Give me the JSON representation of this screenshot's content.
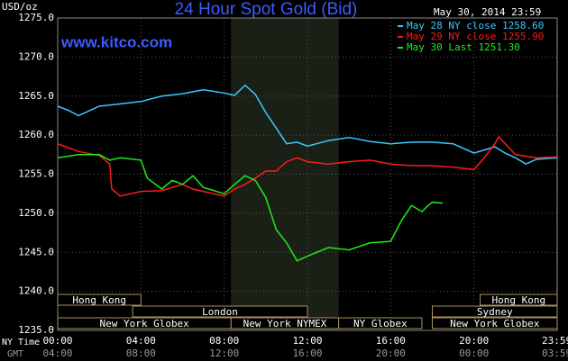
{
  "chart_data": {
    "type": "line",
    "title": "24 Hour Spot Gold (Bid)",
    "date": "May 30, 2014 23:59",
    "site": "www.kitco.com",
    "ylabel": "USD/oz",
    "x_row_label": "NY Time",
    "x2_row_label": "GMT",
    "xlim": [
      0,
      24
    ],
    "ylim": [
      1235,
      1275
    ],
    "xticks": [
      {
        "value": 0,
        "label": "00:00"
      },
      {
        "value": 4,
        "label": "04:00"
      },
      {
        "value": 8,
        "label": "08:00"
      },
      {
        "value": 12,
        "label": "12:00"
      },
      {
        "value": 16,
        "label": "16:00"
      },
      {
        "value": 20,
        "label": "20:00"
      },
      {
        "value": 23.983,
        "label": "23:59"
      }
    ],
    "x2_labels": [
      "04:00",
      "08:00",
      "12:00",
      "16:00",
      "20:00",
      "00:00",
      "03:59"
    ],
    "yticks": [
      {
        "value": 1235,
        "label": "1235.0"
      },
      {
        "value": 1240,
        "label": "1240.0"
      },
      {
        "value": 1245,
        "label": "1245.0"
      },
      {
        "value": 1250,
        "label": "1250.0"
      },
      {
        "value": 1255,
        "label": "1255.0"
      },
      {
        "value": 1260,
        "label": "1260.0"
      },
      {
        "value": 1265,
        "label": "1265.0"
      },
      {
        "value": 1270,
        "label": "1270.0"
      },
      {
        "value": 1275,
        "label": "1275.0"
      }
    ],
    "grid": true,
    "shade": [
      8.33,
      13.5
    ],
    "session_rows": [
      [
        {
          "label": "Hong Kong",
          "start": 0,
          "end": 4
        },
        {
          "label": "Hong Kong",
          "start": 20.3,
          "end": 24
        }
      ],
      [
        {
          "label": "London",
          "start": 3.6,
          "end": 12
        },
        {
          "label": "Sydney",
          "start": 18,
          "end": 24
        }
      ],
      [
        {
          "label": "New York Globex",
          "start": 0,
          "end": 8.33
        },
        {
          "label": "New York NYMEX",
          "start": 8.33,
          "end": 13.5
        },
        {
          "label": "NY Globex",
          "start": 13.5,
          "end": 17.5
        },
        {
          "label": "New York Globex",
          "start": 18,
          "end": 24
        }
      ]
    ],
    "series": [
      {
        "name": "May 28 NY close 1258.60",
        "color": "#3cc8ff",
        "x": [
          0,
          0.5,
          1,
          2,
          3,
          4,
          5,
          6,
          7,
          8,
          8.5,
          9,
          9.5,
          10,
          10.5,
          11,
          11.5,
          12,
          13,
          14,
          15,
          16,
          17,
          18,
          19,
          20,
          21,
          21.5,
          22,
          22.5,
          23,
          24
        ],
        "values": [
          1263.7,
          1263.2,
          1262.5,
          1263.7,
          1264,
          1264.3,
          1265,
          1265.3,
          1265.8,
          1265.4,
          1265.1,
          1266.4,
          1265.2,
          1262.9,
          1260.9,
          1258.9,
          1259.1,
          1258.6,
          1259.3,
          1259.7,
          1259.2,
          1258.9,
          1259.1,
          1259.1,
          1258.9,
          1257.7,
          1258.5,
          1257.7,
          1257.1,
          1256.3,
          1256.9,
          1257.1
        ]
      },
      {
        "name": "May 29 NY close 1255.90",
        "color": "#ff1a1a",
        "x": [
          0,
          1,
          2,
          2.5,
          2.6,
          3,
          4,
          5,
          6,
          6.5,
          7,
          8,
          8.5,
          9,
          9.5,
          10,
          10.5,
          11,
          11.5,
          12,
          13,
          14,
          15,
          16,
          17,
          18,
          19,
          20,
          20.5,
          21,
          21.2,
          21.5,
          22,
          23,
          24
        ],
        "values": [
          1258.9,
          1257.9,
          1257.4,
          1256.3,
          1253.1,
          1252.2,
          1252.8,
          1252.9,
          1253.7,
          1253.1,
          1252.8,
          1252.2,
          1253.1,
          1253.7,
          1254.5,
          1255.4,
          1255.4,
          1256.6,
          1257.1,
          1256.6,
          1256.3,
          1256.6,
          1256.8,
          1256.3,
          1256.1,
          1256.1,
          1255.9,
          1255.6,
          1257.1,
          1258.9,
          1259.8,
          1258.9,
          1257.5,
          1257.1,
          1257.2
        ]
      },
      {
        "name": "May 30 Last 1251.30",
        "color": "#1aee1a",
        "x": [
          0,
          1,
          2,
          2.5,
          3,
          4,
          4.3,
          5,
          5.5,
          6,
          6.5,
          7,
          8,
          8.5,
          9,
          9.5,
          10,
          10.5,
          11,
          11.5,
          12,
          13,
          14,
          15,
          16,
          16.5,
          17,
          17.5,
          17.8,
          18,
          18.5
        ],
        "values": [
          1257.1,
          1257.5,
          1257.5,
          1256.8,
          1257.1,
          1256.8,
          1254.5,
          1253.1,
          1254.2,
          1253.7,
          1254.8,
          1253.3,
          1252.5,
          1253.7,
          1254.8,
          1254.2,
          1252,
          1247.9,
          1246.2,
          1243.9,
          1244.5,
          1245.6,
          1245.3,
          1246.2,
          1246.4,
          1249,
          1251,
          1250.2,
          1251,
          1251.4,
          1251.3
        ]
      }
    ]
  }
}
